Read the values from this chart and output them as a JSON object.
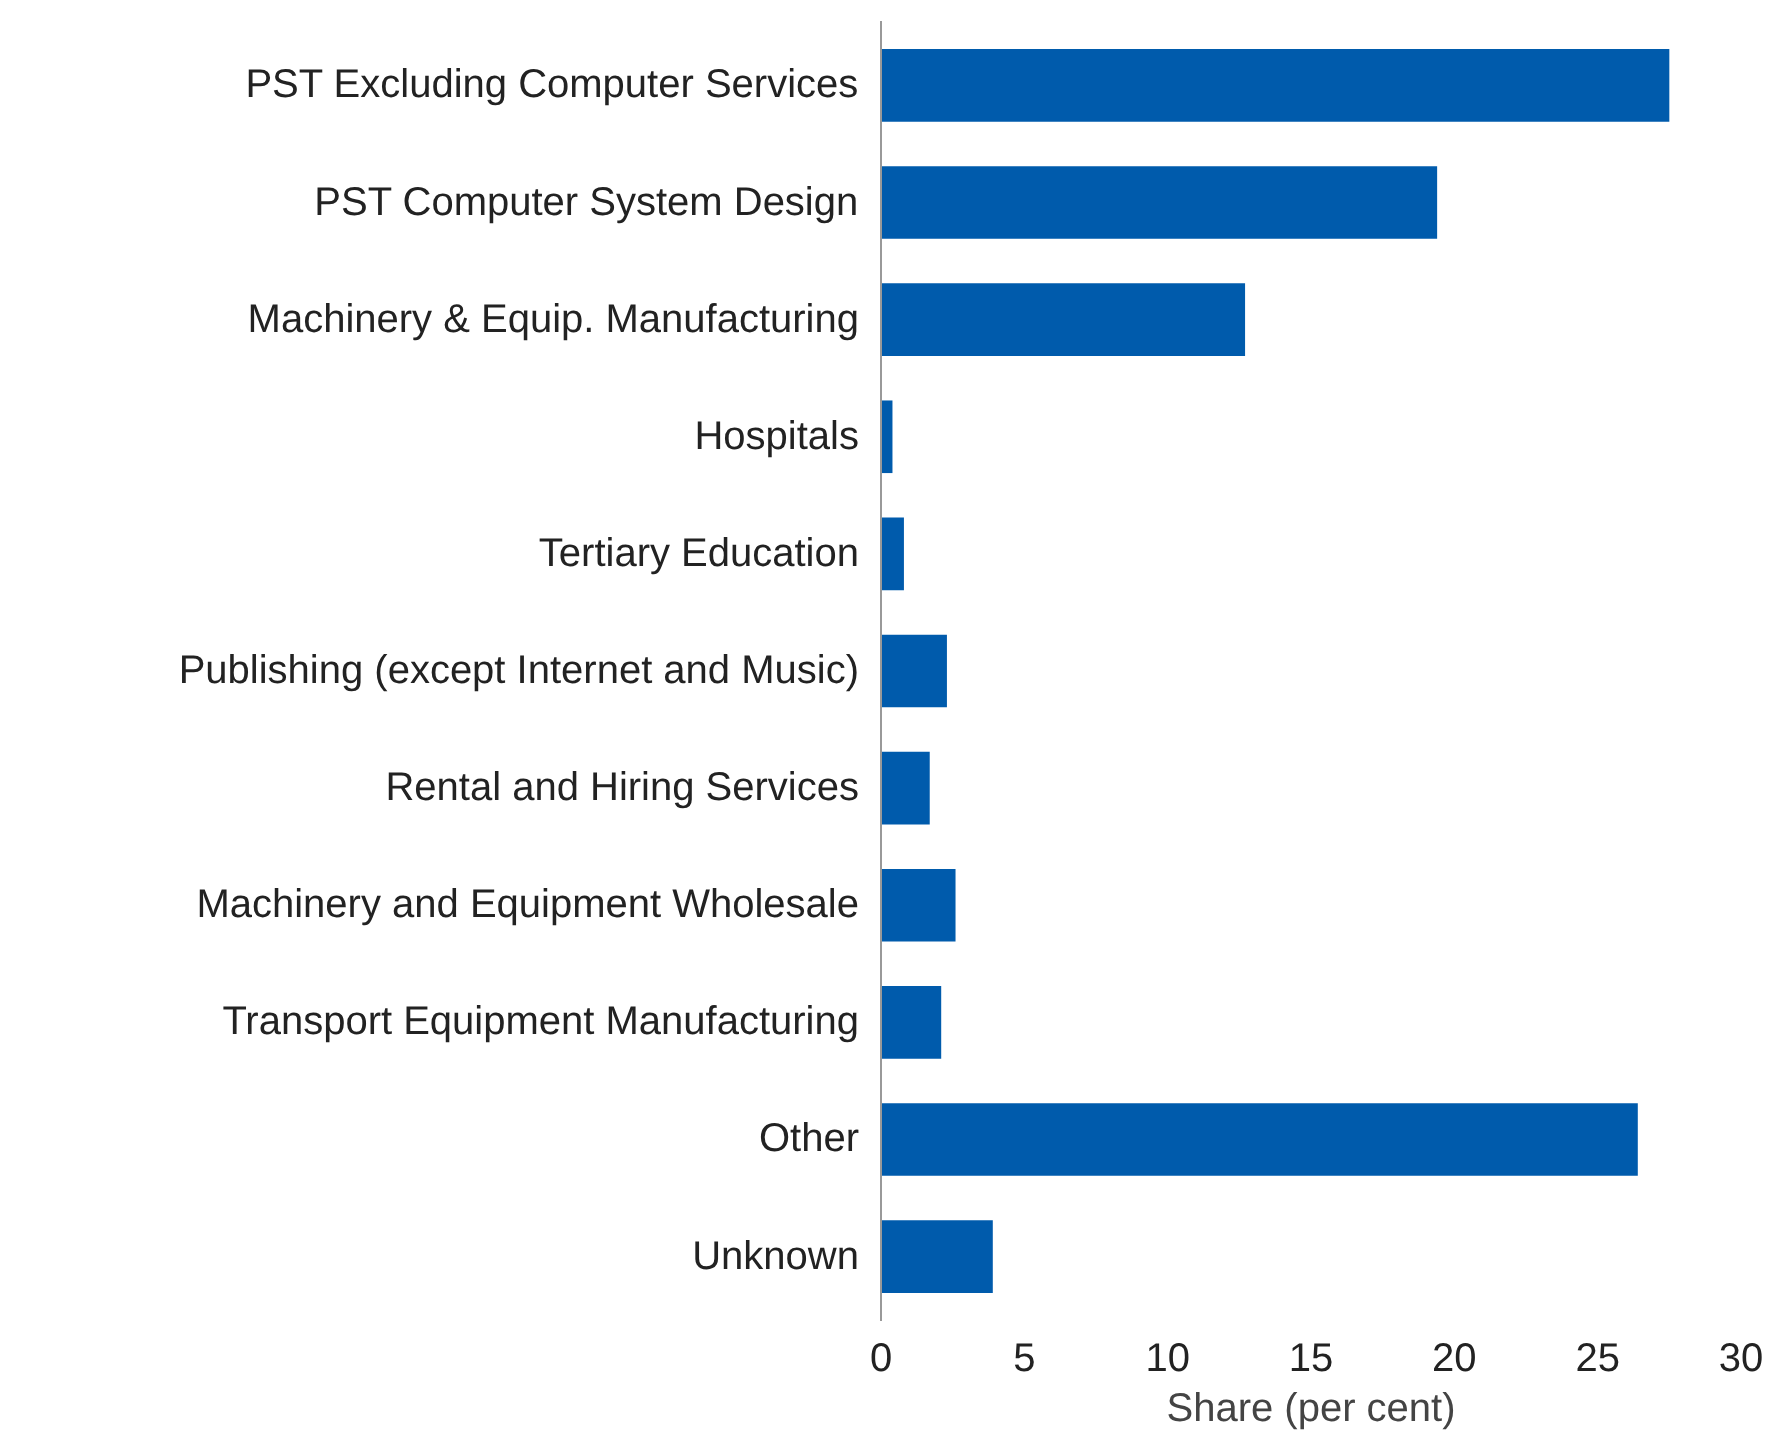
{
  "chart_data": {
    "type": "bar",
    "orientation": "horizontal",
    "xlabel": "Share (per cent)",
    "categories": [
      "PST Excluding Computer Services",
      "PST Computer System Design",
      "Machinery & Equip. Manufacturing",
      "Hospitals",
      "Tertiary Education",
      "Publishing (except Internet and Music)",
      "Rental and Hiring Services",
      "Machinery and Equipment Wholesale",
      "Transport Equipment Manufacturing",
      "Other",
      "Unknown"
    ],
    "values": [
      27.5,
      19.4,
      12.7,
      0.4,
      0.8,
      2.3,
      1.7,
      2.6,
      2.1,
      26.4,
      3.9
    ],
    "color": "#005bac",
    "xlim": [
      0,
      30
    ],
    "xticks": [
      0,
      5,
      10,
      15,
      20,
      25,
      30
    ],
    "grid": false
  }
}
